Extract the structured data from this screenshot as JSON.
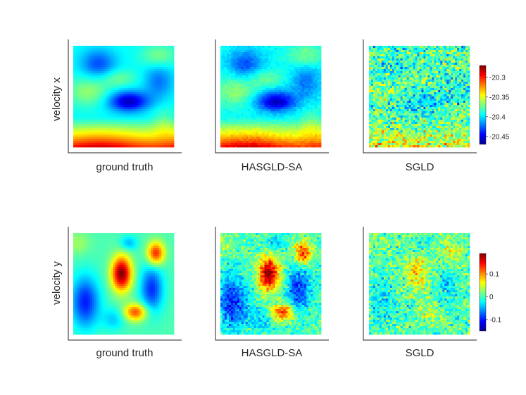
{
  "colormap": "jet",
  "colors": {
    "axis": "#262626",
    "text": "#262626",
    "jet_stops": [
      "#00008f",
      "#0000ff",
      "#00ffff",
      "#ffff00",
      "#ff0000",
      "#800000"
    ]
  },
  "chart_data": [
    {
      "type": "heatmap",
      "row_label": "velocity x",
      "grid": false,
      "colorbar": {
        "range": [
          -20.47,
          -20.27
        ],
        "ticks": [
          "-20.3",
          "-20.35",
          "-20.4",
          "-20.45"
        ],
        "tick_values": [
          -20.3,
          -20.35,
          -20.4,
          -20.45
        ]
      },
      "panels": [
        {
          "caption": "ground truth",
          "field": "smooth",
          "description_values": "bottom band high (~-20.28), central-right blob low (~-20.45), upper area cyan (~-20.38)"
        },
        {
          "caption": "HASGLD-SA",
          "field": "smooth-noisy",
          "noise_level": 0.03
        },
        {
          "caption": "SGLD",
          "field": "noisy",
          "noise_level": 0.6
        }
      ]
    },
    {
      "type": "heatmap",
      "row_label": "velocity y",
      "grid": false,
      "colorbar": {
        "range": [
          -0.15,
          0.19
        ],
        "ticks": [
          "0.1",
          "0",
          "-0.1"
        ],
        "tick_values": [
          0.1,
          0.0,
          -0.1
        ]
      },
      "panels": [
        {
          "caption": "ground truth",
          "field": "smooth",
          "description_values": "central blob high (~0.18), lower-right and upper-right blobs high (~0.1), left and right lobes low (~-0.12)"
        },
        {
          "caption": "HASGLD-SA",
          "field": "smooth-noisy",
          "noise_level": 0.12
        },
        {
          "caption": "SGLD",
          "field": "noisy",
          "noise_level": 0.45
        }
      ]
    }
  ]
}
